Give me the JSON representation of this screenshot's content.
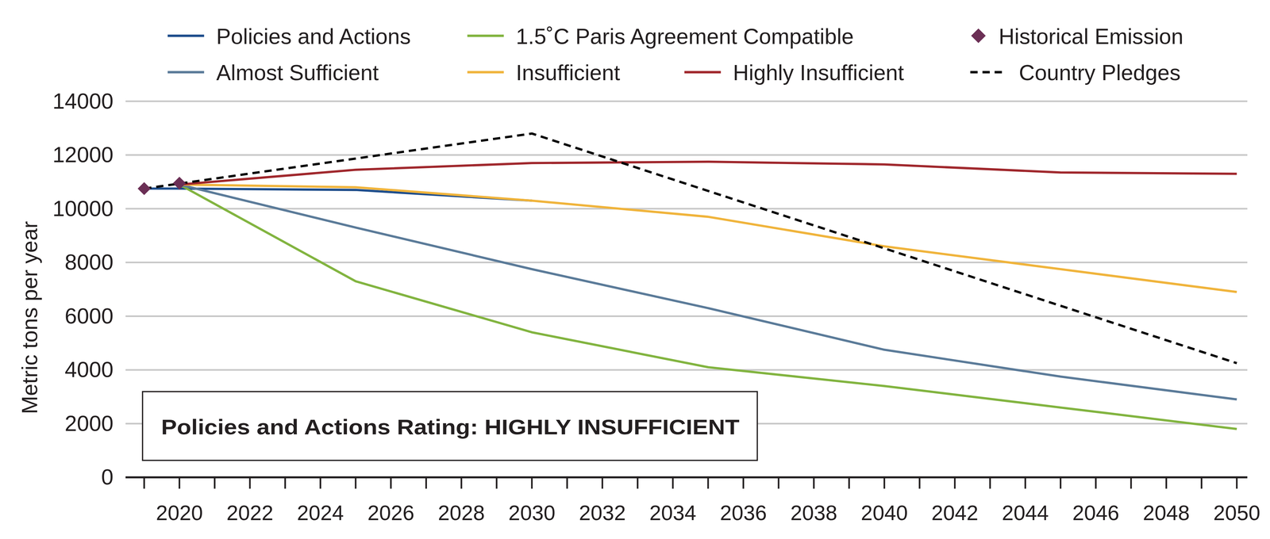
{
  "chart_data": {
    "type": "line",
    "y_label": "Metric tons per year",
    "annotation": "Policies and Actions Rating: HIGHLY INSUFFICIENT",
    "xlim": [
      2019,
      2050
    ],
    "xticks": [
      2020,
      2022,
      2024,
      2026,
      2028,
      2030,
      2032,
      2034,
      2036,
      2038,
      2040,
      2042,
      2044,
      2046,
      2048,
      2050
    ],
    "ylim": [
      0,
      14000
    ],
    "yticks": [
      0,
      2000,
      4000,
      6000,
      8000,
      10000,
      12000,
      14000
    ],
    "grid": true,
    "legend": "top",
    "series": [
      {
        "name": "Policies and Actions",
        "color": "#1f4e8c",
        "line_style": "solid",
        "x": [
          2019,
          2020,
          2025,
          2030
        ],
        "values": [
          10750,
          10750,
          10700,
          10300
        ]
      },
      {
        "name": "1.5˚C Paris Agreement Compatible",
        "color": "#82b440",
        "line_style": "solid",
        "x": [
          2020,
          2025,
          2030,
          2035,
          2040,
          2045,
          2050
        ],
        "values": [
          10900,
          7300,
          5400,
          4100,
          3400,
          2600,
          1800
        ]
      },
      {
        "name": "Historical Emission",
        "color": "#6b2f55",
        "type": "scatter",
        "marker": "diamond",
        "x": [
          2019,
          2020
        ],
        "values": [
          10750,
          10950
        ]
      },
      {
        "name": "Almost Sufficient",
        "color": "#5b7b99",
        "line_style": "solid",
        "x": [
          2020,
          2025,
          2030,
          2035,
          2040,
          2045,
          2050
        ],
        "values": [
          10900,
          9300,
          7750,
          6300,
          4750,
          3750,
          2900
        ]
      },
      {
        "name": "Insufficient",
        "color": "#f0b43c",
        "line_style": "solid",
        "x": [
          2020,
          2025,
          2030,
          2035,
          2040,
          2045,
          2050
        ],
        "values": [
          10900,
          10800,
          10300,
          9700,
          8600,
          7750,
          6900
        ]
      },
      {
        "name": "Highly Insufficient",
        "color": "#a0282d",
        "line_style": "solid",
        "x": [
          2020,
          2025,
          2030,
          2035,
          2040,
          2045,
          2050
        ],
        "values": [
          10900,
          11450,
          11700,
          11750,
          11650,
          11350,
          11300
        ]
      },
      {
        "name": "Country Pledges",
        "color": "#000000",
        "line_style": "dashed",
        "x": [
          2019,
          2030,
          2050
        ],
        "values": [
          10750,
          12800,
          4250
        ]
      }
    ]
  }
}
